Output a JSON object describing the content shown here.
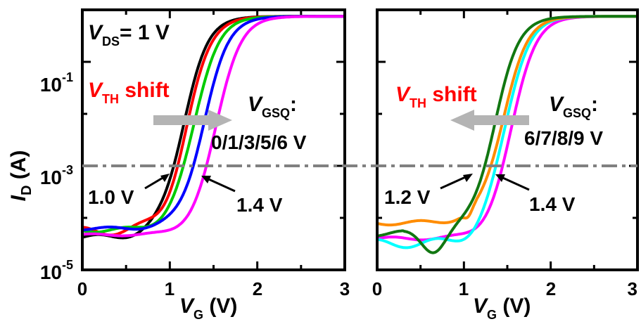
{
  "y_axis_label": {
    "main": "I",
    "sub": "D",
    "unit": " (A)"
  },
  "y_tick_labels": [
    {
      "base": "10",
      "exp": "-1",
      "value": 0.1
    },
    {
      "base": "10",
      "exp": "-3",
      "value": 0.001
    },
    {
      "base": "10",
      "exp": "-5",
      "value": 1e-05
    }
  ],
  "reference_level": 0.001,
  "colors": {
    "black": "#000000",
    "red": "#ff0000",
    "green": "#00cc00",
    "blue": "#0000ff",
    "magenta": "#ff00ff",
    "orange": "#ff8c00",
    "cyan": "#00ffff",
    "darkgreen": "#117711",
    "gray_arrow": "#b4b4b4",
    "dashline": "#808080",
    "vth_red": "#ff0000"
  },
  "chart_data": [
    {
      "type": "line",
      "title": "",
      "xlabel": "V_G (V)",
      "ylabel": "I_D (A)",
      "xlim": [
        0,
        3
      ],
      "ylim": [
        1e-05,
        1
      ],
      "y_scale": "log",
      "x_ticks": [
        "0",
        "1",
        "2",
        "3"
      ],
      "x_label": {
        "main": "V",
        "sub": "G",
        "unit": " (V)"
      },
      "annotations": {
        "vds": {
          "main": "V",
          "sub": "DS",
          "rest": "= 1 V"
        },
        "vth_shift": {
          "main": "V",
          "sub": "TH",
          "rest": " shift",
          "direction": "right"
        },
        "gsq_label": {
          "main": "V",
          "sub": "GSQ",
          "rest": ":"
        },
        "gsq_values": "0/1/3/5/6 V",
        "vth_left": "1.0 V",
        "vth_right": "1.4 V"
      },
      "series": [
        {
          "color": "black",
          "vth": 1.0,
          "ioff": 4.2e-05,
          "noise": 0.05
        },
        {
          "color": "red",
          "vth": 1.05,
          "ioff": 5.5e-05,
          "noise": 0.08
        },
        {
          "color": "green",
          "vth": 1.13,
          "ioff": 5.8e-05,
          "noise": 0.04
        },
        {
          "color": "blue",
          "vth": 1.24,
          "ioff": 6.2e-05,
          "noise": 0.03
        },
        {
          "color": "magenta",
          "vth": 1.38,
          "ioff": 4.7e-05,
          "noise": 0.02
        }
      ]
    },
    {
      "type": "line",
      "title": "",
      "xlabel": "V_G (V)",
      "ylabel": "",
      "xlim": [
        0,
        3
      ],
      "ylim": [
        1e-05,
        1
      ],
      "y_scale": "log",
      "x_ticks": [
        "0",
        "1",
        "2",
        "3"
      ],
      "x_label": {
        "main": "V",
        "sub": "G",
        "unit": " (V)"
      },
      "annotations": {
        "vth_shift": {
          "main": "V",
          "sub": "TH",
          "rest": " shift",
          "direction": "left"
        },
        "gsq_label": {
          "main": "V",
          "sub": "GSQ",
          "rest": ":"
        },
        "gsq_values": "6/7/8/9 V",
        "vth_left": "1.2 V",
        "vth_right": "1.4 V"
      },
      "series": [
        {
          "color": "magenta",
          "vth": 1.4,
          "ioff": 4e-05,
          "noise": 0.03
        },
        {
          "color": "cyan",
          "vth": 1.32,
          "ioff": 3.2e-05,
          "noise": 0.08
        },
        {
          "color": "orange",
          "vth": 1.3,
          "ioff": 8e-05,
          "noise": 0.04
        },
        {
          "color": "darkgreen",
          "vth": 1.2,
          "ioff": 5e-05,
          "noise": 0.05
        }
      ]
    }
  ]
}
